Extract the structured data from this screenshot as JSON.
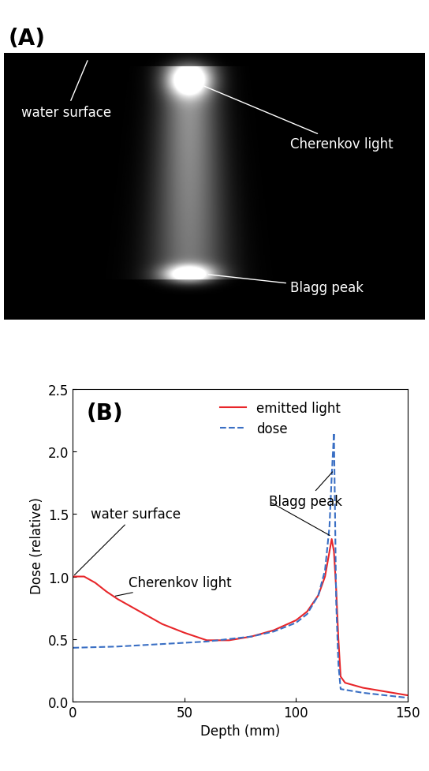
{
  "panel_a": {
    "label": "(A)",
    "annotations": [
      "water surface",
      "Cherenkov light",
      "Blagg peak"
    ]
  },
  "chart_data": {
    "type": "line",
    "panel_label": "(B)",
    "x_label": "Depth (mm)",
    "y_label": "Dose (relative)",
    "xlim": [
      0,
      150
    ],
    "ylim": [
      0,
      2.5
    ],
    "xticks": [
      0,
      50,
      100,
      150
    ],
    "yticks": [
      {
        "value": 0,
        "label": "0.0"
      },
      {
        "value": 0.5,
        "label": "0.5"
      },
      {
        "value": 1.0,
        "label": "1.0"
      },
      {
        "value": 1.5,
        "label": "1.5"
      },
      {
        "value": 2.0,
        "label": "2.0"
      },
      {
        "value": 2.5,
        "label": "2.5"
      }
    ],
    "legend": "upper center",
    "series": [
      {
        "name": "emitted light",
        "color": "#e8262a",
        "line_style": "solid",
        "x": [
          0,
          5,
          10,
          15,
          20,
          30,
          40,
          50,
          60,
          70,
          80,
          90,
          100,
          105,
          110,
          113,
          115,
          116,
          117,
          118,
          119,
          120,
          122,
          130,
          140,
          150
        ],
        "values": [
          1.0,
          1.0,
          0.95,
          0.88,
          0.82,
          0.72,
          0.62,
          0.55,
          0.49,
          0.49,
          0.52,
          0.57,
          0.65,
          0.72,
          0.85,
          1.0,
          1.2,
          1.3,
          1.2,
          0.9,
          0.5,
          0.2,
          0.15,
          0.11,
          0.08,
          0.05
        ]
      },
      {
        "name": "dose",
        "color": "#3a6fc4",
        "line_style": "dashed",
        "x": [
          0,
          20,
          40,
          60,
          80,
          90,
          100,
          105,
          110,
          113,
          115,
          116,
          117,
          117.5,
          118,
          119,
          120,
          130,
          140,
          150
        ],
        "values": [
          0.43,
          0.44,
          0.46,
          0.48,
          0.52,
          0.56,
          0.63,
          0.7,
          0.85,
          1.05,
          1.4,
          1.8,
          2.15,
          1.5,
          0.8,
          0.3,
          0.1,
          0.07,
          0.05,
          0.03
        ]
      }
    ],
    "annotations": [
      {
        "text": "water surface",
        "points": [
          [
            0,
            1.0
          ]
        ]
      },
      {
        "text": "Cherenkov light",
        "points": [
          [
            18,
            0.84
          ]
        ]
      },
      {
        "text": "Blagg peak",
        "points": [
          [
            117,
            1.85
          ],
          [
            116,
            1.32
          ]
        ]
      }
    ]
  }
}
